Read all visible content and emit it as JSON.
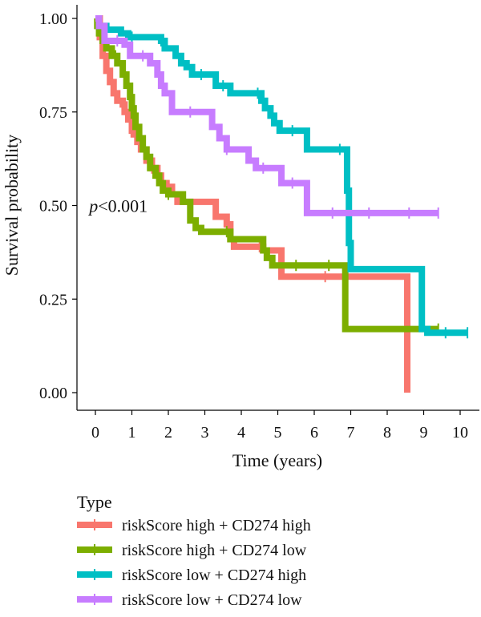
{
  "chart_data": {
    "type": "line",
    "subtype": "kaplan-meier step",
    "xlabel": "Time (years)",
    "ylabel": "Survival probability",
    "xlim": [
      0,
      10
    ],
    "ylim": [
      0,
      1
    ],
    "xticks": [
      0,
      1,
      2,
      3,
      4,
      5,
      6,
      7,
      8,
      9,
      10
    ],
    "yticks": [
      "0.00",
      "0.25",
      "0.50",
      "0.75",
      "1.00"
    ],
    "yticks_values": [
      0,
      0.25,
      0.5,
      0.75,
      1.0
    ],
    "grid": false,
    "annotation": {
      "italic": "p",
      "rest": "<0.001",
      "at": [
        0.05,
        0.5
      ]
    },
    "legend": {
      "title": "Type",
      "placement": "bottom-left"
    },
    "series": [
      {
        "name": "riskScore high + CD274 high",
        "color": "#F8766D",
        "points": [
          [
            0,
            1.0
          ],
          [
            0.12,
            0.95
          ],
          [
            0.2,
            0.9
          ],
          [
            0.3,
            0.86
          ],
          [
            0.4,
            0.83
          ],
          [
            0.5,
            0.8
          ],
          [
            0.6,
            0.78
          ],
          [
            0.75,
            0.77
          ],
          [
            0.8,
            0.75
          ],
          [
            0.9,
            0.73
          ],
          [
            1.0,
            0.7
          ],
          [
            1.05,
            0.69
          ],
          [
            1.15,
            0.67
          ],
          [
            1.25,
            0.65
          ],
          [
            1.4,
            0.62
          ],
          [
            1.55,
            0.6
          ],
          [
            1.7,
            0.58
          ],
          [
            1.8,
            0.56
          ],
          [
            1.95,
            0.55
          ],
          [
            2.1,
            0.53
          ],
          [
            2.25,
            0.51
          ],
          [
            3.2,
            0.51
          ],
          [
            3.3,
            0.47
          ],
          [
            3.6,
            0.45
          ],
          [
            3.7,
            0.41
          ],
          [
            3.8,
            0.39
          ],
          [
            4.5,
            0.39
          ],
          [
            4.6,
            0.38
          ],
          [
            5.0,
            0.38
          ],
          [
            5.1,
            0.31
          ],
          [
            8.55,
            0.31
          ],
          [
            8.55,
            0.0
          ]
        ],
        "censor_times": [
          1.55,
          3.6,
          4.5,
          6.3
        ]
      },
      {
        "name": "riskScore high + CD274 low",
        "color": "#7CAE00",
        "points": [
          [
            0,
            1.0
          ],
          [
            0.05,
            0.98
          ],
          [
            0.1,
            0.96
          ],
          [
            0.2,
            0.94
          ],
          [
            0.3,
            0.92
          ],
          [
            0.45,
            0.9
          ],
          [
            0.6,
            0.88
          ],
          [
            0.75,
            0.85
          ],
          [
            0.85,
            0.82
          ],
          [
            0.95,
            0.79
          ],
          [
            1.0,
            0.76
          ],
          [
            1.05,
            0.74
          ],
          [
            1.1,
            0.71
          ],
          [
            1.2,
            0.68
          ],
          [
            1.3,
            0.65
          ],
          [
            1.4,
            0.63
          ],
          [
            1.5,
            0.6
          ],
          [
            1.65,
            0.58
          ],
          [
            1.75,
            0.56
          ],
          [
            1.85,
            0.54
          ],
          [
            2.0,
            0.53
          ],
          [
            2.4,
            0.51
          ],
          [
            2.6,
            0.46
          ],
          [
            2.75,
            0.44
          ],
          [
            2.9,
            0.43
          ],
          [
            3.6,
            0.43
          ],
          [
            3.7,
            0.41
          ],
          [
            4.5,
            0.41
          ],
          [
            4.6,
            0.38
          ],
          [
            4.7,
            0.36
          ],
          [
            4.85,
            0.34
          ],
          [
            6.85,
            0.34
          ],
          [
            6.85,
            0.17
          ],
          [
            9.4,
            0.17
          ]
        ],
        "censor_times": [
          0.55,
          2.0,
          3.6,
          5.5,
          6.4,
          9.4
        ]
      },
      {
        "name": "riskScore low + CD274 high",
        "color": "#00BFC4",
        "points": [
          [
            0,
            1.0
          ],
          [
            0.1,
            0.98
          ],
          [
            0.3,
            0.97
          ],
          [
            0.7,
            0.96
          ],
          [
            0.9,
            0.95
          ],
          [
            1.8,
            0.94
          ],
          [
            1.9,
            0.92
          ],
          [
            2.2,
            0.9
          ],
          [
            2.35,
            0.88
          ],
          [
            2.5,
            0.87
          ],
          [
            2.65,
            0.85
          ],
          [
            3.2,
            0.85
          ],
          [
            3.3,
            0.82
          ],
          [
            3.7,
            0.8
          ],
          [
            4.45,
            0.8
          ],
          [
            4.55,
            0.78
          ],
          [
            4.65,
            0.76
          ],
          [
            4.8,
            0.74
          ],
          [
            4.9,
            0.72
          ],
          [
            5.05,
            0.7
          ],
          [
            5.6,
            0.7
          ],
          [
            5.8,
            0.65
          ],
          [
            6.85,
            0.65
          ],
          [
            6.9,
            0.54
          ],
          [
            6.95,
            0.4
          ],
          [
            7.0,
            0.33
          ],
          [
            8.9,
            0.33
          ],
          [
            8.95,
            0.17
          ],
          [
            9.1,
            0.16
          ],
          [
            10.2,
            0.16
          ]
        ],
        "censor_times": [
          0.3,
          1.0,
          1.8,
          2.9,
          3.5,
          4.45,
          5.4,
          6.7,
          9.6,
          10.2
        ]
      },
      {
        "name": "riskScore low + CD274 low",
        "color": "#C77CFF",
        "points": [
          [
            0,
            1.0
          ],
          [
            0.1,
            0.98
          ],
          [
            0.25,
            0.94
          ],
          [
            0.8,
            0.93
          ],
          [
            0.95,
            0.9
          ],
          [
            1.3,
            0.9
          ],
          [
            1.5,
            0.88
          ],
          [
            1.7,
            0.85
          ],
          [
            1.8,
            0.82
          ],
          [
            1.9,
            0.8
          ],
          [
            2.1,
            0.75
          ],
          [
            3.0,
            0.75
          ],
          [
            3.2,
            0.71
          ],
          [
            3.4,
            0.68
          ],
          [
            3.6,
            0.65
          ],
          [
            4.0,
            0.65
          ],
          [
            4.2,
            0.62
          ],
          [
            4.4,
            0.6
          ],
          [
            5.0,
            0.6
          ],
          [
            5.1,
            0.56
          ],
          [
            5.7,
            0.56
          ],
          [
            5.8,
            0.48
          ],
          [
            9.4,
            0.48
          ]
        ],
        "censor_times": [
          0.6,
          1.3,
          2.6,
          3.6,
          4.6,
          5.4,
          6.5,
          7.5,
          8.6,
          9.4
        ]
      }
    ]
  }
}
